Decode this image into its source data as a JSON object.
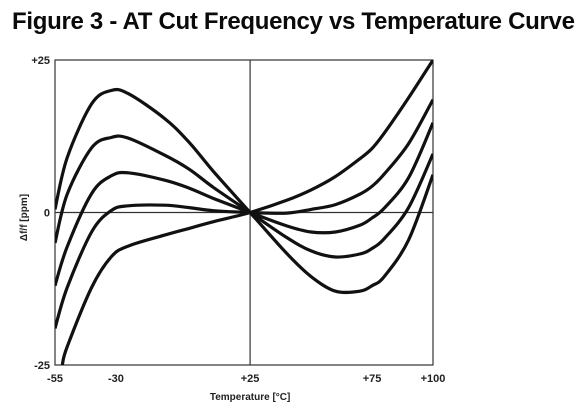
{
  "title": "Figure 3 - AT Cut Frequency vs Temperature Curve",
  "chart_data": {
    "type": "line",
    "title": "Figure 3 - AT Cut Frequency vs Temperature Curve",
    "xlabel": "Temperature [°C]",
    "ylabel": "Δf/f [ppm]",
    "xlim": [
      -55,
      100
    ],
    "ylim": [
      -25,
      25
    ],
    "x_ticks": [
      "-55",
      "-30",
      "+25",
      "+75",
      "+100"
    ],
    "y_ticks": [
      "+25",
      "0",
      "-25"
    ],
    "grid": false,
    "reference_lines": {
      "x": 25,
      "y": 0
    },
    "series": [
      {
        "x": [
          -55,
          -50,
          -40,
          -32,
          -25,
          -10,
          0,
          10,
          25,
          40,
          50,
          60,
          70,
          75,
          80,
          90,
          100
        ],
        "y": [
          0.5,
          9,
          17.8,
          20,
          19.5,
          15.4,
          11.5,
          6.7,
          0,
          -6.7,
          -10.5,
          -12.9,
          -12.9,
          -12,
          -10.5,
          -4.5,
          6.2
        ]
      },
      {
        "x": [
          -55,
          -50,
          -40,
          -32,
          -25,
          -10,
          0,
          10,
          25,
          40,
          50,
          60,
          70,
          75,
          80,
          90,
          100
        ],
        "y": [
          -5,
          3,
          10.6,
          12.3,
          12.2,
          9.4,
          7.1,
          4.1,
          0,
          -4.1,
          -6.3,
          -7.3,
          -6.8,
          -5.9,
          -4.3,
          0.8,
          9.6
        ]
      },
      {
        "x": [
          -55,
          -50,
          -40,
          -32,
          -25,
          -10,
          0,
          10,
          25,
          40,
          50,
          60,
          70,
          75,
          80,
          90,
          100
        ],
        "y": [
          -12,
          -5.6,
          3.1,
          6,
          6.5,
          5.3,
          4,
          2.3,
          0,
          -2.2,
          -3.2,
          -3.2,
          -2.1,
          -0.9,
          0.7,
          5.7,
          14.7
        ]
      },
      {
        "x": [
          -55,
          -50,
          -40,
          -32,
          -25,
          -10,
          0,
          10,
          25,
          40,
          50,
          60,
          70,
          75,
          80,
          90,
          100
        ],
        "y": [
          -19,
          -12.3,
          -3.2,
          0.3,
          1.1,
          1.2,
          0.8,
          0.3,
          0,
          -0.1,
          0.5,
          1.3,
          3,
          4.3,
          6.3,
          11.3,
          18.5
        ]
      },
      {
        "x": [
          -52,
          -50,
          -40,
          -32,
          -25,
          -10,
          0,
          10,
          25,
          40,
          50,
          60,
          70,
          75,
          80,
          90,
          100
        ],
        "y": [
          -25,
          -22,
          -12.3,
          -7.3,
          -5.5,
          -3.7,
          -2.6,
          -1.5,
          0,
          2,
          3.7,
          5.9,
          8.8,
          10.5,
          13,
          18.8,
          25
        ]
      }
    ]
  }
}
